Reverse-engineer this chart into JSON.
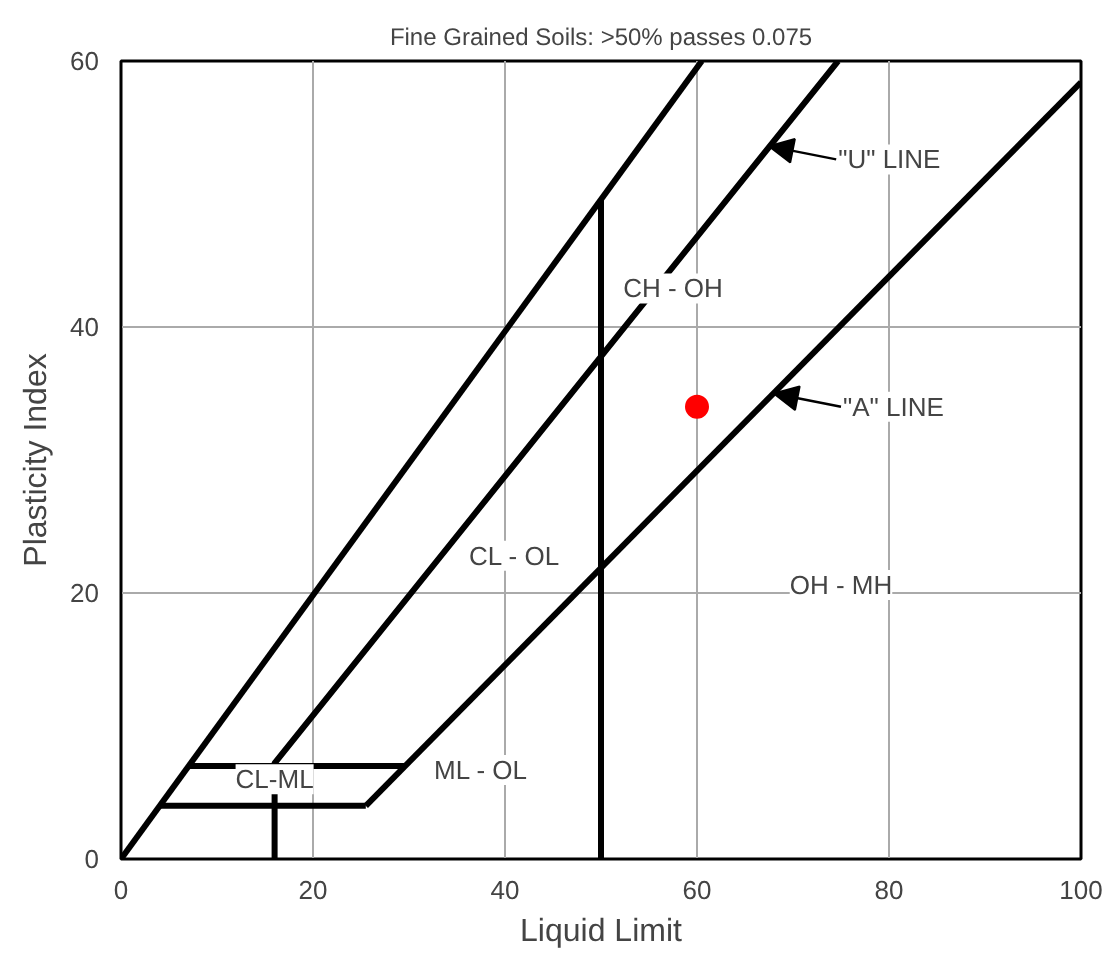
{
  "chart_data": {
    "type": "line",
    "title": "Fine Grained Soils: >50% passes 0.075",
    "xlabel": "Liquid Limit",
    "ylabel": "Plasticity Index",
    "xlim": [
      0,
      100
    ],
    "ylim": [
      0,
      60
    ],
    "xticks": [
      0,
      20,
      40,
      60,
      80,
      100
    ],
    "yticks": [
      0,
      20,
      40,
      60
    ],
    "grid": true,
    "series": [
      {
        "color": "#000000",
        "x": [
          0,
          60.5
        ],
        "values": [
          0,
          60
        ]
      },
      {
        "color": "#000000",
        "x": [
          25.5,
          100
        ],
        "values": [
          4,
          58.4
        ]
      },
      {
        "color": "#000000",
        "x": [
          50,
          50
        ],
        "values": [
          0,
          49.6
        ]
      },
      {
        "color": "#000000",
        "x": [
          4,
          25.5
        ],
        "values": [
          4,
          4
        ]
      },
      {
        "color": "#000000",
        "x": [
          7,
          29.6
        ],
        "values": [
          7,
          7
        ]
      },
      {
        "color": "#000000",
        "x": [
          16,
          16,
          74.7
        ],
        "values": [
          0,
          7.2,
          60
        ]
      },
      {
        "type": "scatter",
        "marker": "circle",
        "color": "#ff0000",
        "x": [
          60
        ],
        "values": [
          34
        ]
      }
    ],
    "annotations": [
      {
        "text": "\"U\" LINE",
        "x": 67.5,
        "y": 53.6
      },
      {
        "text": "\"A\" LINE",
        "x": 68,
        "y": 35
      },
      "CH - OH",
      "CL - OL",
      "OH - MH",
      "ML - OL",
      {
        "text": "CL-ML",
        "x": 16,
        "y": 6
      }
    ]
  }
}
